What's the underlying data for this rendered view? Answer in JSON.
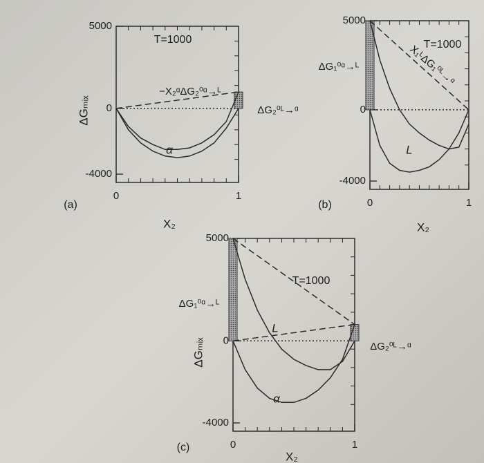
{
  "chart_data": [
    {
      "type": "line",
      "title": "T=1000",
      "panel": "(a)",
      "x_label": "X₂",
      "y_label": "ΔGₘᵢₓ",
      "xlim": [
        0,
        1
      ],
      "xticks": [
        0,
        1
      ],
      "ylim": [
        -4000,
        5000
      ],
      "yticks": [
        -4000,
        0,
        5000
      ],
      "annotations": [
        "−X₂ᵅΔG₂⁰ᵅ→ᴸ",
        "ΔG₂⁰ᴸ→ᵅ"
      ],
      "hatched": [
        {
          "x": 1,
          "value": 1000
        }
      ],
      "series": [
        {
          "name": "α",
          "style": "solid",
          "color": "#2a2a2a",
          "x": [
            0,
            0.1,
            0.2,
            0.3,
            0.4,
            0.5,
            0.6,
            0.7,
            0.8,
            0.9,
            1
          ],
          "values": [
            0,
            -1100,
            -1800,
            -2200,
            -2500,
            -2500,
            -2400,
            -2100,
            -1600,
            -800,
            1000
          ]
        },
        {
          "style": "solid",
          "color": "#2a2a2a",
          "x": [
            0,
            0.1,
            0.2,
            0.3,
            0.4,
            0.5,
            0.6,
            0.7,
            0.8,
            0.9,
            1
          ],
          "values": [
            0,
            -1300,
            -2100,
            -2600,
            -2900,
            -3000,
            -2900,
            -2600,
            -2100,
            -1200,
            0
          ]
        },
        {
          "style": "dashed",
          "color": "#2a2a2a",
          "x": [
            0,
            1
          ],
          "values": [
            0,
            1000
          ]
        },
        {
          "style": "dotted",
          "color": "#2a2a2a",
          "x": [
            0,
            1
          ],
          "values": [
            0,
            0
          ]
        }
      ]
    },
    {
      "type": "line",
      "title": "T=1000",
      "panel": "(b)",
      "x_label": "X₂",
      "xlim": [
        0,
        1
      ],
      "xticks": [
        0,
        1
      ],
      "ylim": [
        -4000,
        5000
      ],
      "yticks": [
        -4000,
        0,
        5000
      ],
      "annotations": [
        "ΔG₁⁰ᵅ→ᴸ",
        "X₁ᴸΔG₁⁰ᴸ→ᵅ"
      ],
      "hatched": [
        {
          "x": 0,
          "value": 5000
        }
      ],
      "series": [
        {
          "name": "L",
          "style": "solid",
          "color": "#2a2a2a",
          "x": [
            0,
            0.1,
            0.2,
            0.3,
            0.4,
            0.5,
            0.6,
            0.7,
            0.8,
            0.9,
            1
          ],
          "values": [
            5000,
            2800,
            1200,
            0,
            -800,
            -1300,
            -1700,
            -2000,
            -2200,
            -2100,
            -800
          ]
        },
        {
          "style": "solid",
          "color": "#2a2a2a",
          "x": [
            0,
            0.1,
            0.2,
            0.3,
            0.4,
            0.5,
            0.6,
            0.7,
            0.8,
            0.9,
            1
          ],
          "values": [
            0,
            -2000,
            -3000,
            -3400,
            -3500,
            -3400,
            -3200,
            -2800,
            -2200,
            -1300,
            0
          ]
        },
        {
          "style": "dashed",
          "color": "#2a2a2a",
          "x": [
            0,
            1
          ],
          "values": [
            5000,
            0
          ]
        },
        {
          "style": "dotted",
          "color": "#2a2a2a",
          "x": [
            0,
            1
          ],
          "values": [
            0,
            0
          ]
        }
      ]
    },
    {
      "type": "line",
      "title": "T=1000",
      "panel": "(c)",
      "x_label": "X₂",
      "y_label": "ΔGₘᵢₓ",
      "xlim": [
        0,
        1
      ],
      "xticks": [
        0,
        1
      ],
      "ylim": [
        -4000,
        5000
      ],
      "yticks": [
        -4000,
        0,
        5000
      ],
      "annotations": [
        "ΔG₁⁰ᵅ→ᴸ",
        "ΔG₂⁰ᴸ→ᵅ"
      ],
      "hatched": [
        {
          "x": 0,
          "value": 5000
        },
        {
          "x": 1,
          "value": 800
        }
      ],
      "series": [
        {
          "name": "L",
          "style": "solid",
          "color": "#2a2a2a",
          "x": [
            0,
            0.1,
            0.2,
            0.3,
            0.4,
            0.5,
            0.6,
            0.7,
            0.8,
            0.9,
            1
          ],
          "values": [
            5000,
            3000,
            1500,
            400,
            -400,
            -900,
            -1200,
            -1400,
            -1400,
            -1000,
            0
          ]
        },
        {
          "name": "α",
          "style": "solid",
          "color": "#2a2a2a",
          "x": [
            0,
            0.1,
            0.2,
            0.3,
            0.4,
            0.5,
            0.6,
            0.7,
            0.8,
            0.9,
            1
          ],
          "values": [
            0,
            -1400,
            -2300,
            -2800,
            -3000,
            -3000,
            -2800,
            -2400,
            -1800,
            -900,
            800
          ]
        },
        {
          "style": "dashed",
          "color": "#2a2a2a",
          "x": [
            0,
            1
          ],
          "values": [
            5000,
            800
          ]
        },
        {
          "style": "dashed",
          "color": "#2a2a2a",
          "x": [
            0,
            1
          ],
          "values": [
            0,
            800
          ]
        },
        {
          "style": "dotted",
          "color": "#2a2a2a",
          "x": [
            0,
            1
          ],
          "values": [
            0,
            0
          ]
        }
      ]
    }
  ]
}
